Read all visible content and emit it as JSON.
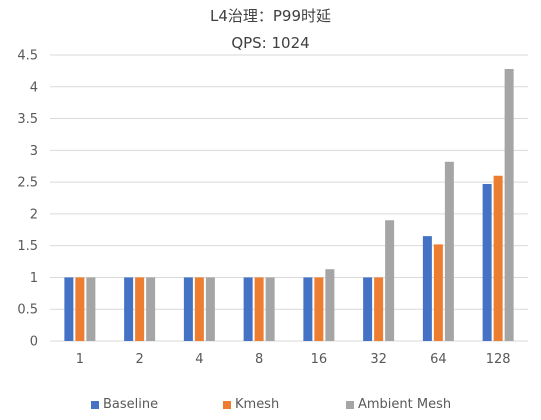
{
  "title_line1": "L4治理：P99时延",
  "title_line2": "QPS:   1024",
  "chart_data": {
    "type": "bar",
    "title": "L4治理：P99时延",
    "subtitle": "QPS:   1024",
    "categories": [
      "1",
      "2",
      "4",
      "8",
      "16",
      "32",
      "64",
      "128"
    ],
    "series": [
      {
        "name": "Baseline",
        "color": "#4472c4",
        "values": [
          1.0,
          1.0,
          1.0,
          1.0,
          1.0,
          1.0,
          1.65,
          2.47
        ]
      },
      {
        "name": "Kmesh",
        "color": "#ed7d31",
        "values": [
          1.0,
          1.0,
          1.0,
          1.0,
          1.0,
          1.0,
          1.52,
          2.6
        ]
      },
      {
        "name": "Ambient Mesh",
        "color": "#a5a5a5",
        "values": [
          1.0,
          1.0,
          1.0,
          1.0,
          1.13,
          1.9,
          2.82,
          4.28
        ]
      }
    ],
    "yticks": [
      "0",
      "0.5",
      "1",
      "1.5",
      "2",
      "2.5",
      "3",
      "3.5",
      "4",
      "4.5"
    ],
    "ylim": [
      0,
      4.5
    ],
    "xlabel": "",
    "ylabel": "",
    "grid": true,
    "legend": "bottom",
    "gridline_color": "#d9d9d9"
  }
}
